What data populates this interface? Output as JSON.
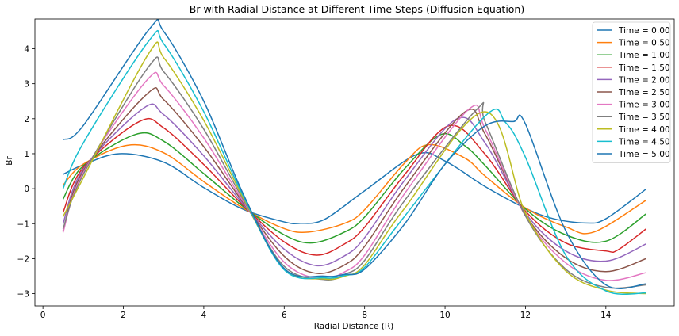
{
  "chart_data": {
    "type": "line",
    "title": "Br with Radial Distance at Different Time Steps (Diffusion Equation)",
    "xlabel": "Radial Distance (R)",
    "ylabel": "Br",
    "xlim": [
      -0.2,
      15.7
    ],
    "ylim": [
      -3.35,
      4.85
    ],
    "xticks": [
      0,
      2,
      4,
      6,
      8,
      10,
      12,
      14
    ],
    "yticks": [
      -3,
      -2,
      -1,
      0,
      1,
      2,
      3,
      4
    ],
    "grid": false,
    "legend_position": "top-right",
    "x_range": [
      0.5,
      15
    ],
    "series": [
      {
        "name": "Time = 0.00",
        "color": "#1f77b4",
        "x": [
          0.5,
          1.0,
          1.9,
          3.0,
          4.0,
          5.0,
          6.0,
          6.4,
          7.0,
          8.0,
          9.3,
          10.0,
          11.0,
          12.0,
          12.7,
          13.5,
          14.0,
          15.0
        ],
        "y": [
          0.41,
          0.68,
          1.0,
          0.76,
          0.03,
          -0.6,
          -0.95,
          -0.99,
          -0.88,
          -0.06,
          0.98,
          0.79,
          0.06,
          -0.56,
          -0.86,
          -0.98,
          -0.86,
          -0.01
        ]
      },
      {
        "name": "Time = 0.50",
        "color": "#ff7f0e",
        "x": [
          0.5,
          1.0,
          2.1,
          3.0,
          4.0,
          5.0,
          6.0,
          6.6,
          7.5,
          8.0,
          9.0,
          9.6,
          10.5,
          11.0,
          12.0,
          13.0,
          13.7,
          15.0
        ],
        "y": [
          0.1,
          0.7,
          1.24,
          1.03,
          0.2,
          -0.57,
          -1.14,
          -1.24,
          -0.99,
          -0.6,
          0.74,
          1.26,
          0.87,
          0.36,
          -0.55,
          -1.09,
          -1.24,
          -0.33
        ]
      },
      {
        "name": "Time = 1.00",
        "color": "#2ca02c",
        "x": [
          0.5,
          1.0,
          2.3,
          3.0,
          4.0,
          5.0,
          6.0,
          6.7,
          7.5,
          8.0,
          9.0,
          9.9,
          10.5,
          11.0,
          12.0,
          13.0,
          14.0,
          15.0
        ],
        "y": [
          -0.3,
          0.65,
          1.55,
          1.36,
          0.43,
          -0.53,
          -1.32,
          -1.55,
          -1.24,
          -0.81,
          0.58,
          1.55,
          1.22,
          0.66,
          -0.58,
          -1.32,
          -1.5,
          -0.72
        ]
      },
      {
        "name": "Time = 1.50",
        "color": "#d62728",
        "x": [
          0.5,
          1.0,
          2.4,
          3.0,
          4.0,
          5.0,
          6.0,
          6.8,
          7.5,
          8.0,
          9.0,
          10.1,
          11.0,
          12.0,
          13.0,
          14.0,
          14.3,
          15.0
        ],
        "y": [
          -0.68,
          0.6,
          1.92,
          1.74,
          0.69,
          -0.5,
          -1.52,
          -1.9,
          -1.58,
          -1.1,
          0.41,
          1.8,
          0.98,
          -0.64,
          -1.55,
          -1.78,
          -1.75,
          -1.15
        ]
      },
      {
        "name": "Time = 2.00",
        "color": "#9467bd",
        "x": [
          0.5,
          1.0,
          2.5,
          3.0,
          4.0,
          5.0,
          6.0,
          6.8,
          7.5,
          8.0,
          9.0,
          10.3,
          11.0,
          12.0,
          13.0,
          14.0,
          15.0
        ],
        "y": [
          -1.0,
          0.55,
          2.3,
          2.12,
          0.94,
          -0.47,
          -1.73,
          -2.2,
          -1.92,
          -1.4,
          0.25,
          2.0,
          1.3,
          -0.7,
          -1.78,
          -2.07,
          -1.58
        ]
      },
      {
        "name": "Time = 2.50",
        "color": "#8c564b",
        "x": [
          0.5,
          1.0,
          2.6,
          3.0,
          4.0,
          5.0,
          6.0,
          6.8,
          7.5,
          8.0,
          9.0,
          10.5,
          11.0,
          12.0,
          13.0,
          14.0,
          15.0
        ],
        "y": [
          -1.2,
          0.5,
          2.72,
          2.55,
          1.2,
          -0.43,
          -1.93,
          -2.42,
          -2.18,
          -1.65,
          0.05,
          2.2,
          1.55,
          -0.75,
          -1.98,
          -2.37,
          -2.0
        ]
      },
      {
        "name": "Time = 3.00",
        "color": "#e377c2",
        "x": [
          0.5,
          1.0,
          2.6,
          3.0,
          4.0,
          5.0,
          6.0,
          6.9,
          7.5,
          8.0,
          9.0,
          10.6,
          11.0,
          12.0,
          13.0,
          14.0,
          15.0
        ],
        "y": [
          -1.25,
          0.45,
          3.12,
          2.95,
          1.45,
          -0.4,
          -2.1,
          -2.58,
          -2.38,
          -1.9,
          -0.13,
          2.28,
          1.7,
          -0.78,
          -2.12,
          -2.62,
          -2.4
        ]
      },
      {
        "name": "Time = 3.50",
        "color": "#7f7f7f",
        "x": [
          0.5,
          1.0,
          2.65,
          3.0,
          4.0,
          5.0,
          6.0,
          7.0,
          7.5,
          8.0,
          9.0,
          10.8,
          11.0,
          12.0,
          13.0,
          14.0,
          15.0
        ],
        "y": [
          -1.15,
          0.4,
          3.52,
          3.35,
          1.7,
          -0.35,
          -2.22,
          -2.6,
          -2.45,
          -2.05,
          -0.33,
          2.28,
          1.9,
          -0.78,
          -2.3,
          -2.82,
          -2.75
        ]
      },
      {
        "name": "Time = 4.00",
        "color": "#bcbd22",
        "x": [
          0.5,
          1.0,
          2.65,
          3.0,
          4.0,
          5.0,
          6.0,
          7.0,
          7.5,
          8.0,
          9.0,
          11.0,
          12.0,
          13.0,
          14.0,
          15.0
        ],
        "y": [
          -0.8,
          0.3,
          3.9,
          3.75,
          1.95,
          -0.3,
          -2.3,
          -2.58,
          -2.5,
          -2.18,
          -0.55,
          2.2,
          -0.7,
          -2.35,
          -2.9,
          -3.0
        ]
      },
      {
        "name": "Time = 4.50",
        "color": "#17becf",
        "x": [
          0.5,
          1.0,
          2.65,
          3.0,
          4.0,
          5.0,
          6.0,
          7.0,
          7.5,
          8.0,
          9.0,
          11.0,
          11.5,
          12.0,
          13.0,
          14.0,
          15.0
        ],
        "y": [
          0.0,
          1.3,
          4.25,
          4.15,
          2.2,
          -0.25,
          -2.32,
          -2.55,
          -2.48,
          -2.25,
          -0.78,
          2.08,
          1.9,
          0.9,
          -1.9,
          -2.92,
          -2.98
        ]
      },
      {
        "name": "Time = 5.00",
        "color": "#1f77b4",
        "x": [
          0.5,
          1.0,
          2.65,
          3.0,
          4.0,
          5.0,
          6.0,
          7.0,
          7.5,
          8.0,
          9.0,
          10.0,
          11.0,
          11.7,
          12.0,
          13.0,
          14.0,
          15.0
        ],
        "y": [
          1.4,
          1.8,
          4.57,
          4.5,
          2.5,
          -0.2,
          -2.28,
          -2.5,
          -2.45,
          -2.3,
          -1.0,
          0.7,
          1.8,
          1.92,
          1.85,
          -1.2,
          -2.75,
          -2.72
        ]
      }
    ]
  }
}
